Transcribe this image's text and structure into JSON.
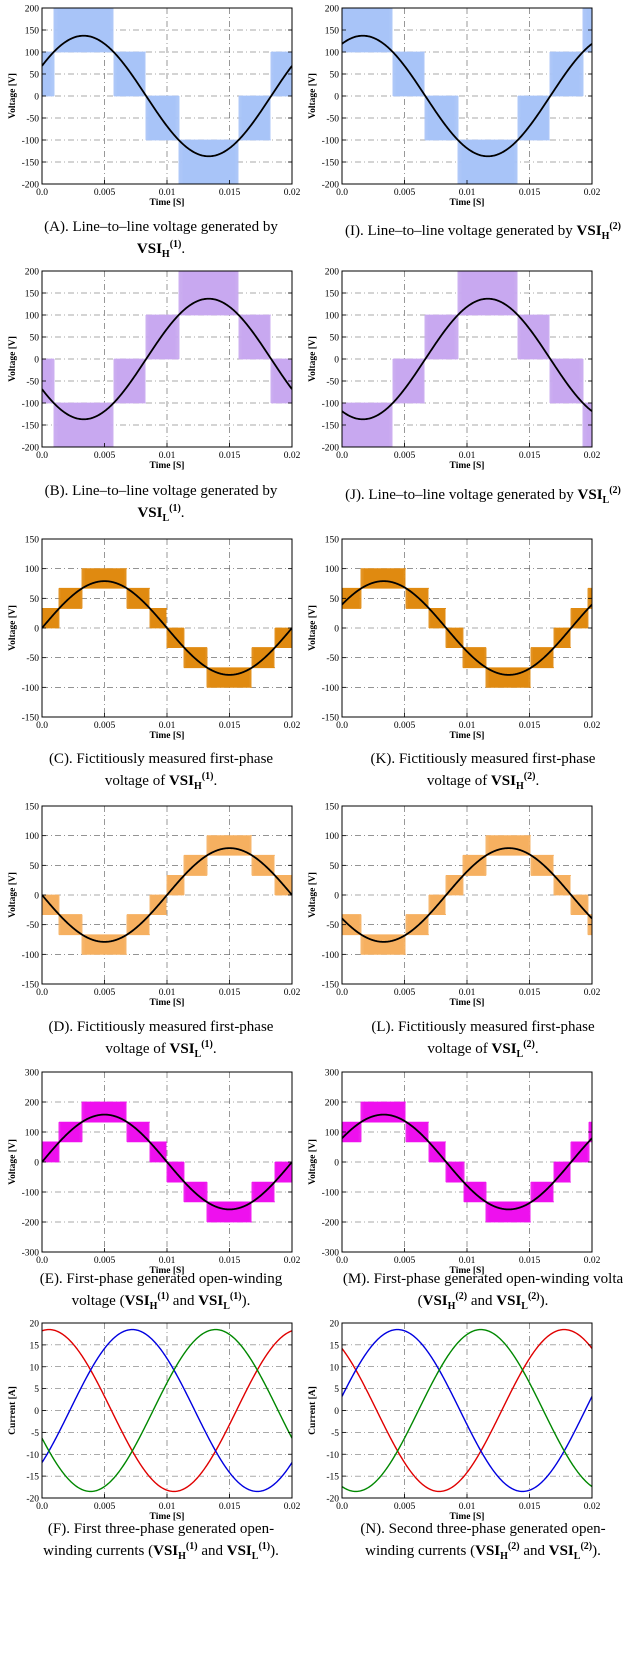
{
  "panels": [
    {
      "id": "A",
      "chart_data": {
        "type": "line",
        "xlabel": "Time [S]",
        "ylabel": "Voltage [V]",
        "xlim": [
          0,
          0.02
        ],
        "ylim": [
          -200,
          200
        ],
        "xticks": [
          0,
          0.005,
          0.01,
          0.015,
          0.02
        ],
        "xtick_labels": [
          "0.0",
          "0.005",
          "0.01",
          "0.015",
          "0.02"
        ],
        "yticks": [
          -200,
          -150,
          -100,
          -50,
          0,
          50,
          100,
          150,
          200
        ],
        "ytick_labels": [
          "-200",
          "-150",
          "-100",
          "-50",
          "0",
          "50",
          "100",
          "150",
          "200"
        ],
        "grid": true,
        "series_colors": [
          "#000000"
        ],
        "pwm_color": "#a8c4f8",
        "series": [
          {
            "type": "sine",
            "amplitude": 137,
            "freq_hz": 50,
            "phase_deg": 30
          }
        ],
        "pwm": {
          "levels": [
            0,
            100,
            200
          ],
          "amplitude": 137,
          "phase_deg": 30
        }
      },
      "caption": {
        "a": "(A). Line–to–line voltage generated by",
        "b": "VSI",
        "c": "H",
        "d": "(1)",
        "e": "."
      }
    },
    {
      "id": "I",
      "chart_data": {
        "type": "line",
        "xlabel": "Time [S]",
        "ylabel": "Voltage [V]",
        "xlim": [
          0,
          0.02
        ],
        "ylim": [
          -200,
          200
        ],
        "xticks": [
          0,
          0.005,
          0.01,
          0.015,
          0.02
        ],
        "xtick_labels": [
          "0.0",
          "0.005",
          "0.01",
          "0.015",
          "0.02"
        ],
        "yticks": [
          -200,
          -150,
          -100,
          -50,
          0,
          50,
          100,
          150,
          200
        ],
        "ytick_labels": [
          "-200",
          "-150",
          "-100",
          "-50",
          "0",
          "50",
          "100",
          "150",
          "200"
        ],
        "grid": true,
        "series_colors": [
          "#000000"
        ],
        "pwm_color": "#a8c4f8",
        "series": [
          {
            "type": "sine",
            "amplitude": 137,
            "freq_hz": 50,
            "phase_deg": 60
          }
        ],
        "pwm": {
          "levels": [
            0,
            100,
            200
          ],
          "amplitude": 137,
          "phase_deg": 60
        }
      },
      "caption": {
        "a": "(I). Line–to–line voltage generated by ",
        "b": "VSI",
        "c": "H",
        "d": "(2)",
        "e": ""
      }
    },
    {
      "id": "B",
      "chart_data": {
        "type": "line",
        "xlabel": "Time [S]",
        "ylabel": "Voltage [V]",
        "xlim": [
          0,
          0.02
        ],
        "ylim": [
          -200,
          200
        ],
        "xticks": [
          0,
          0.005,
          0.01,
          0.015,
          0.02
        ],
        "xtick_labels": [
          "0.0",
          "0.005",
          "0.01",
          "0.015",
          "0.02"
        ],
        "yticks": [
          -200,
          -150,
          -100,
          -50,
          0,
          50,
          100,
          150,
          200
        ],
        "ytick_labels": [
          "-200",
          "-150",
          "-100",
          "-50",
          "0",
          "50",
          "100",
          "150",
          "200"
        ],
        "grid": true,
        "series_colors": [
          "#000000"
        ],
        "pwm_color": "#c8a8f0",
        "series": [
          {
            "type": "sine",
            "amplitude": 137,
            "freq_hz": 50,
            "phase_deg": 210
          }
        ],
        "pwm": {
          "levels": [
            0,
            100,
            200
          ],
          "amplitude": 137,
          "phase_deg": 210
        }
      },
      "caption": {
        "a": "(B). Line–to–line voltage generated by",
        "b": "VSI",
        "c": "L",
        "d": "(1)",
        "e": "."
      }
    },
    {
      "id": "J",
      "chart_data": {
        "type": "line",
        "xlabel": "Time [S]",
        "ylabel": "Voltage [V]",
        "xlim": [
          0,
          0.02
        ],
        "ylim": [
          -200,
          200
        ],
        "xticks": [
          0,
          0.005,
          0.01,
          0.015,
          0.02
        ],
        "xtick_labels": [
          "0.0",
          "0.005",
          "0.01",
          "0.015",
          "0.02"
        ],
        "yticks": [
          -200,
          -150,
          -100,
          -50,
          0,
          50,
          100,
          150,
          200
        ],
        "ytick_labels": [
          "-200",
          "-150",
          "-100",
          "-50",
          "0",
          "50",
          "100",
          "150",
          "200"
        ],
        "grid": true,
        "series_colors": [
          "#000000"
        ],
        "pwm_color": "#c8a8f0",
        "series": [
          {
            "type": "sine",
            "amplitude": 137,
            "freq_hz": 50,
            "phase_deg": 240
          }
        ],
        "pwm": {
          "levels": [
            0,
            100,
            200
          ],
          "amplitude": 137,
          "phase_deg": 240
        }
      },
      "caption": {
        "a": "(J). Line–to–line voltage generated by ",
        "b": "VSI",
        "c": "L",
        "d": "(2)",
        "e": ""
      }
    },
    {
      "id": "C",
      "chart_data": {
        "type": "line",
        "xlabel": "Time [S]",
        "ylabel": "Voltage [V]",
        "xlim": [
          0,
          0.02
        ],
        "ylim": [
          -150,
          150
        ],
        "xticks": [
          0,
          0.005,
          0.01,
          0.015,
          0.02
        ],
        "xtick_labels": [
          "0.0",
          "0.005",
          "0.01",
          "0.015",
          "0.02"
        ],
        "yticks": [
          -150,
          -100,
          -50,
          0,
          50,
          100,
          150
        ],
        "ytick_labels": [
          "-150",
          "-100",
          "-50",
          "0",
          "50",
          "100",
          "150"
        ],
        "grid": true,
        "series_colors": [
          "#000000"
        ],
        "pwm_color": "#e08a10",
        "series": [
          {
            "type": "sine",
            "amplitude": 79,
            "freq_hz": 50,
            "phase_deg": 0
          }
        ],
        "pwm": {
          "levels": [
            0,
            33,
            67,
            100,
            133
          ],
          "amplitude": 79,
          "phase_deg": 0
        }
      },
      "caption": {
        "a": "(C). Fictitiously measured first-phase",
        "a2": "voltage of ",
        "b": "VSI",
        "c": "H",
        "d": "(1)",
        "e": "."
      }
    },
    {
      "id": "K",
      "chart_data": {
        "type": "line",
        "xlabel": "Time [S]",
        "ylabel": "Voltage [V]",
        "xlim": [
          0,
          0.02
        ],
        "ylim": [
          -150,
          150
        ],
        "xticks": [
          0,
          0.005,
          0.01,
          0.015,
          0.02
        ],
        "xtick_labels": [
          "0.0",
          "0.005",
          "0.01",
          "0.015",
          "0.02"
        ],
        "yticks": [
          -150,
          -100,
          -50,
          0,
          50,
          100,
          150
        ],
        "ytick_labels": [
          "-150",
          "-100",
          "-50",
          "0",
          "50",
          "100",
          "150"
        ],
        "grid": true,
        "series_colors": [
          "#000000"
        ],
        "pwm_color": "#e08a10",
        "series": [
          {
            "type": "sine",
            "amplitude": 79,
            "freq_hz": 50,
            "phase_deg": 30
          }
        ],
        "pwm": {
          "levels": [
            0,
            33,
            67,
            100,
            133
          ],
          "amplitude": 79,
          "phase_deg": 30
        }
      },
      "caption": {
        "a": "(K). Fictitiously measured first-phase",
        "a2": "voltage of ",
        "b": "VSI",
        "c": "H",
        "d": "(2)",
        "e": "."
      }
    },
    {
      "id": "D",
      "chart_data": {
        "type": "line",
        "xlabel": "Time [S]",
        "ylabel": "Voltage [V]",
        "xlim": [
          0,
          0.02
        ],
        "ylim": [
          -150,
          150
        ],
        "xticks": [
          0,
          0.005,
          0.01,
          0.015,
          0.02
        ],
        "xtick_labels": [
          "0.0",
          "0.005",
          "0.01",
          "0.015",
          "0.02"
        ],
        "yticks": [
          -150,
          -100,
          -50,
          0,
          50,
          100,
          150
        ],
        "ytick_labels": [
          "-150",
          "-100",
          "-50",
          "0",
          "50",
          "100",
          "150"
        ],
        "grid": true,
        "series_colors": [
          "#000000"
        ],
        "pwm_color": "#f6b060",
        "series": [
          {
            "type": "sine",
            "amplitude": 79,
            "freq_hz": 50,
            "phase_deg": 180
          }
        ],
        "pwm": {
          "levels": [
            0,
            33,
            67,
            100,
            133
          ],
          "amplitude": 79,
          "phase_deg": 180
        }
      },
      "caption": {
        "a": "(D). Fictitiously measured first-phase",
        "a2": "voltage of ",
        "b": "VSI",
        "c": "L",
        "d": "(1)",
        "e": "."
      }
    },
    {
      "id": "L",
      "chart_data": {
        "type": "line",
        "xlabel": "Time [S]",
        "ylabel": "Voltage [V]",
        "xlim": [
          0,
          0.02
        ],
        "ylim": [
          -150,
          150
        ],
        "xticks": [
          0,
          0.005,
          0.01,
          0.015,
          0.02
        ],
        "xtick_labels": [
          "0.0",
          "0.005",
          "0.01",
          "0.015",
          "0.02"
        ],
        "yticks": [
          -150,
          -100,
          -50,
          0,
          50,
          100,
          150
        ],
        "ytick_labels": [
          "-150",
          "-100",
          "-50",
          "0",
          "50",
          "100",
          "150"
        ],
        "grid": true,
        "series_colors": [
          "#000000"
        ],
        "pwm_color": "#f6b060",
        "series": [
          {
            "type": "sine",
            "amplitude": 79,
            "freq_hz": 50,
            "phase_deg": 210
          }
        ],
        "pwm": {
          "levels": [
            0,
            33,
            67,
            100,
            133
          ],
          "amplitude": 79,
          "phase_deg": 210
        }
      },
      "caption": {
        "a": "(L). Fictitiously measured first-phase",
        "a2": "voltage of ",
        "b": "VSI",
        "c": "L",
        "d": "(2)",
        "e": "."
      }
    },
    {
      "id": "E",
      "chart_data": {
        "type": "line",
        "xlabel": "Time [S]",
        "ylabel": "Voltage [V]",
        "xlim": [
          0,
          0.02
        ],
        "ylim": [
          -300,
          300
        ],
        "xticks": [
          0,
          0.005,
          0.01,
          0.015,
          0.02
        ],
        "xtick_labels": [
          "0.0",
          "0.005",
          "0.01",
          "0.015",
          "0.02"
        ],
        "yticks": [
          -300,
          -200,
          -100,
          0,
          100,
          200,
          300
        ],
        "ytick_labels": [
          "-300",
          "-200",
          "-100",
          "0",
          "100",
          "200",
          "300"
        ],
        "grid": true,
        "series_colors": [
          "#000000"
        ],
        "pwm_color": "#ee10ee",
        "series": [
          {
            "type": "sine",
            "amplitude": 158,
            "freq_hz": 50,
            "phase_deg": 0
          }
        ],
        "pwm": {
          "levels": [
            0,
            67,
            133,
            200,
            267
          ],
          "amplitude": 158,
          "phase_deg": 0
        }
      },
      "caption": {
        "a": "(E). First-phase generated open-winding",
        "a2": "voltage (",
        "b": "VSI",
        "c": "H",
        "d": "(1)",
        "m": " and ",
        "b2": "VSI",
        "c2": "L",
        "d2": "(1)",
        "e": ")."
      }
    },
    {
      "id": "M",
      "chart_data": {
        "type": "line",
        "xlabel": "Time [S]",
        "ylabel": "Voltage [V]",
        "xlim": [
          0,
          0.02
        ],
        "ylim": [
          -300,
          300
        ],
        "xticks": [
          0,
          0.005,
          0.01,
          0.015,
          0.02
        ],
        "xtick_labels": [
          "0.0",
          "0.005",
          "0.01",
          "0.015",
          "0.02"
        ],
        "yticks": [
          -300,
          -200,
          -100,
          0,
          100,
          200,
          300
        ],
        "ytick_labels": [
          "-300",
          "-200",
          "-100",
          "0",
          "100",
          "200",
          "300"
        ],
        "grid": true,
        "series_colors": [
          "#000000"
        ],
        "pwm_color": "#ee10ee",
        "series": [
          {
            "type": "sine",
            "amplitude": 158,
            "freq_hz": 50,
            "phase_deg": 30
          }
        ],
        "pwm": {
          "levels": [
            0,
            67,
            133,
            200,
            267
          ],
          "amplitude": 158,
          "phase_deg": 30
        }
      },
      "caption": {
        "a": "(M). First-phase generated open-winding volta",
        "a2": "(",
        "b": "VSI",
        "c": "H",
        "d": "(2)",
        "m": " and ",
        "b2": "VSI",
        "c2": "L",
        "d2": "(2)",
        "e": ")."
      }
    },
    {
      "id": "F",
      "chart_data": {
        "type": "line",
        "xlabel": "Time [S]",
        "ylabel": "Current [A]",
        "xlim": [
          0,
          0.02
        ],
        "ylim": [
          -20,
          20
        ],
        "xticks": [
          0,
          0.005,
          0.01,
          0.015,
          0.02
        ],
        "xtick_labels": [
          "0.0",
          "0.005",
          "0.01",
          "0.015",
          "0.02"
        ],
        "yticks": [
          -20,
          -15,
          -10,
          -5,
          0,
          5,
          10,
          15,
          20
        ],
        "ytick_labels": [
          "-20",
          "-15",
          "-10",
          "-5",
          "0",
          "5",
          "10",
          "15",
          "20"
        ],
        "grid": true,
        "series_colors": [
          "#e00000",
          "#0000e0",
          "#008800"
        ],
        "pwm_color": "",
        "series": [
          {
            "type": "sine",
            "amplitude": 18.5,
            "freq_hz": 50,
            "phase_deg": 80
          },
          {
            "type": "sine",
            "amplitude": 18.5,
            "freq_hz": 50,
            "phase_deg": -40
          },
          {
            "type": "sine",
            "amplitude": 18.5,
            "freq_hz": 50,
            "phase_deg": 200
          }
        ],
        "pwm": null
      },
      "caption": {
        "a": "(F). First three-phase generated open-",
        "a2": "winding currents (",
        "b": "VSI",
        "c": "H",
        "d": "(1)",
        "m": " and ",
        "b2": "VSI",
        "c2": "L",
        "d2": "(1)",
        "e": ")."
      }
    },
    {
      "id": "N",
      "chart_data": {
        "type": "line",
        "xlabel": "Time [S]",
        "ylabel": "Current [A]",
        "xlim": [
          0,
          0.02
        ],
        "ylim": [
          -20,
          20
        ],
        "xticks": [
          0,
          0.005,
          0.01,
          0.015,
          0.02
        ],
        "xtick_labels": [
          "0.0",
          "0.005",
          "0.01",
          "0.015",
          "0.02"
        ],
        "yticks": [
          -20,
          -15,
          -10,
          -5,
          0,
          5,
          10,
          15,
          20
        ],
        "ytick_labels": [
          "-20",
          "-15",
          "-10",
          "-5",
          "0",
          "5",
          "10",
          "15",
          "20"
        ],
        "grid": true,
        "series_colors": [
          "#e00000",
          "#0000e0",
          "#008800"
        ],
        "pwm_color": "",
        "series": [
          {
            "type": "sine",
            "amplitude": 18.5,
            "freq_hz": 50,
            "phase_deg": 130
          },
          {
            "type": "sine",
            "amplitude": 18.5,
            "freq_hz": 50,
            "phase_deg": 10
          },
          {
            "type": "sine",
            "amplitude": 18.5,
            "freq_hz": 50,
            "phase_deg": -110
          }
        ],
        "pwm": null
      },
      "caption": {
        "a": "(N). Second three-phase generated open-",
        "a2": "winding currents (",
        "b": "VSI",
        "c": "H",
        "d": "(2)",
        "m": " and  ",
        "b2": "VSI",
        "c2": "L",
        "d2": "(2)",
        "e": ")."
      }
    }
  ]
}
